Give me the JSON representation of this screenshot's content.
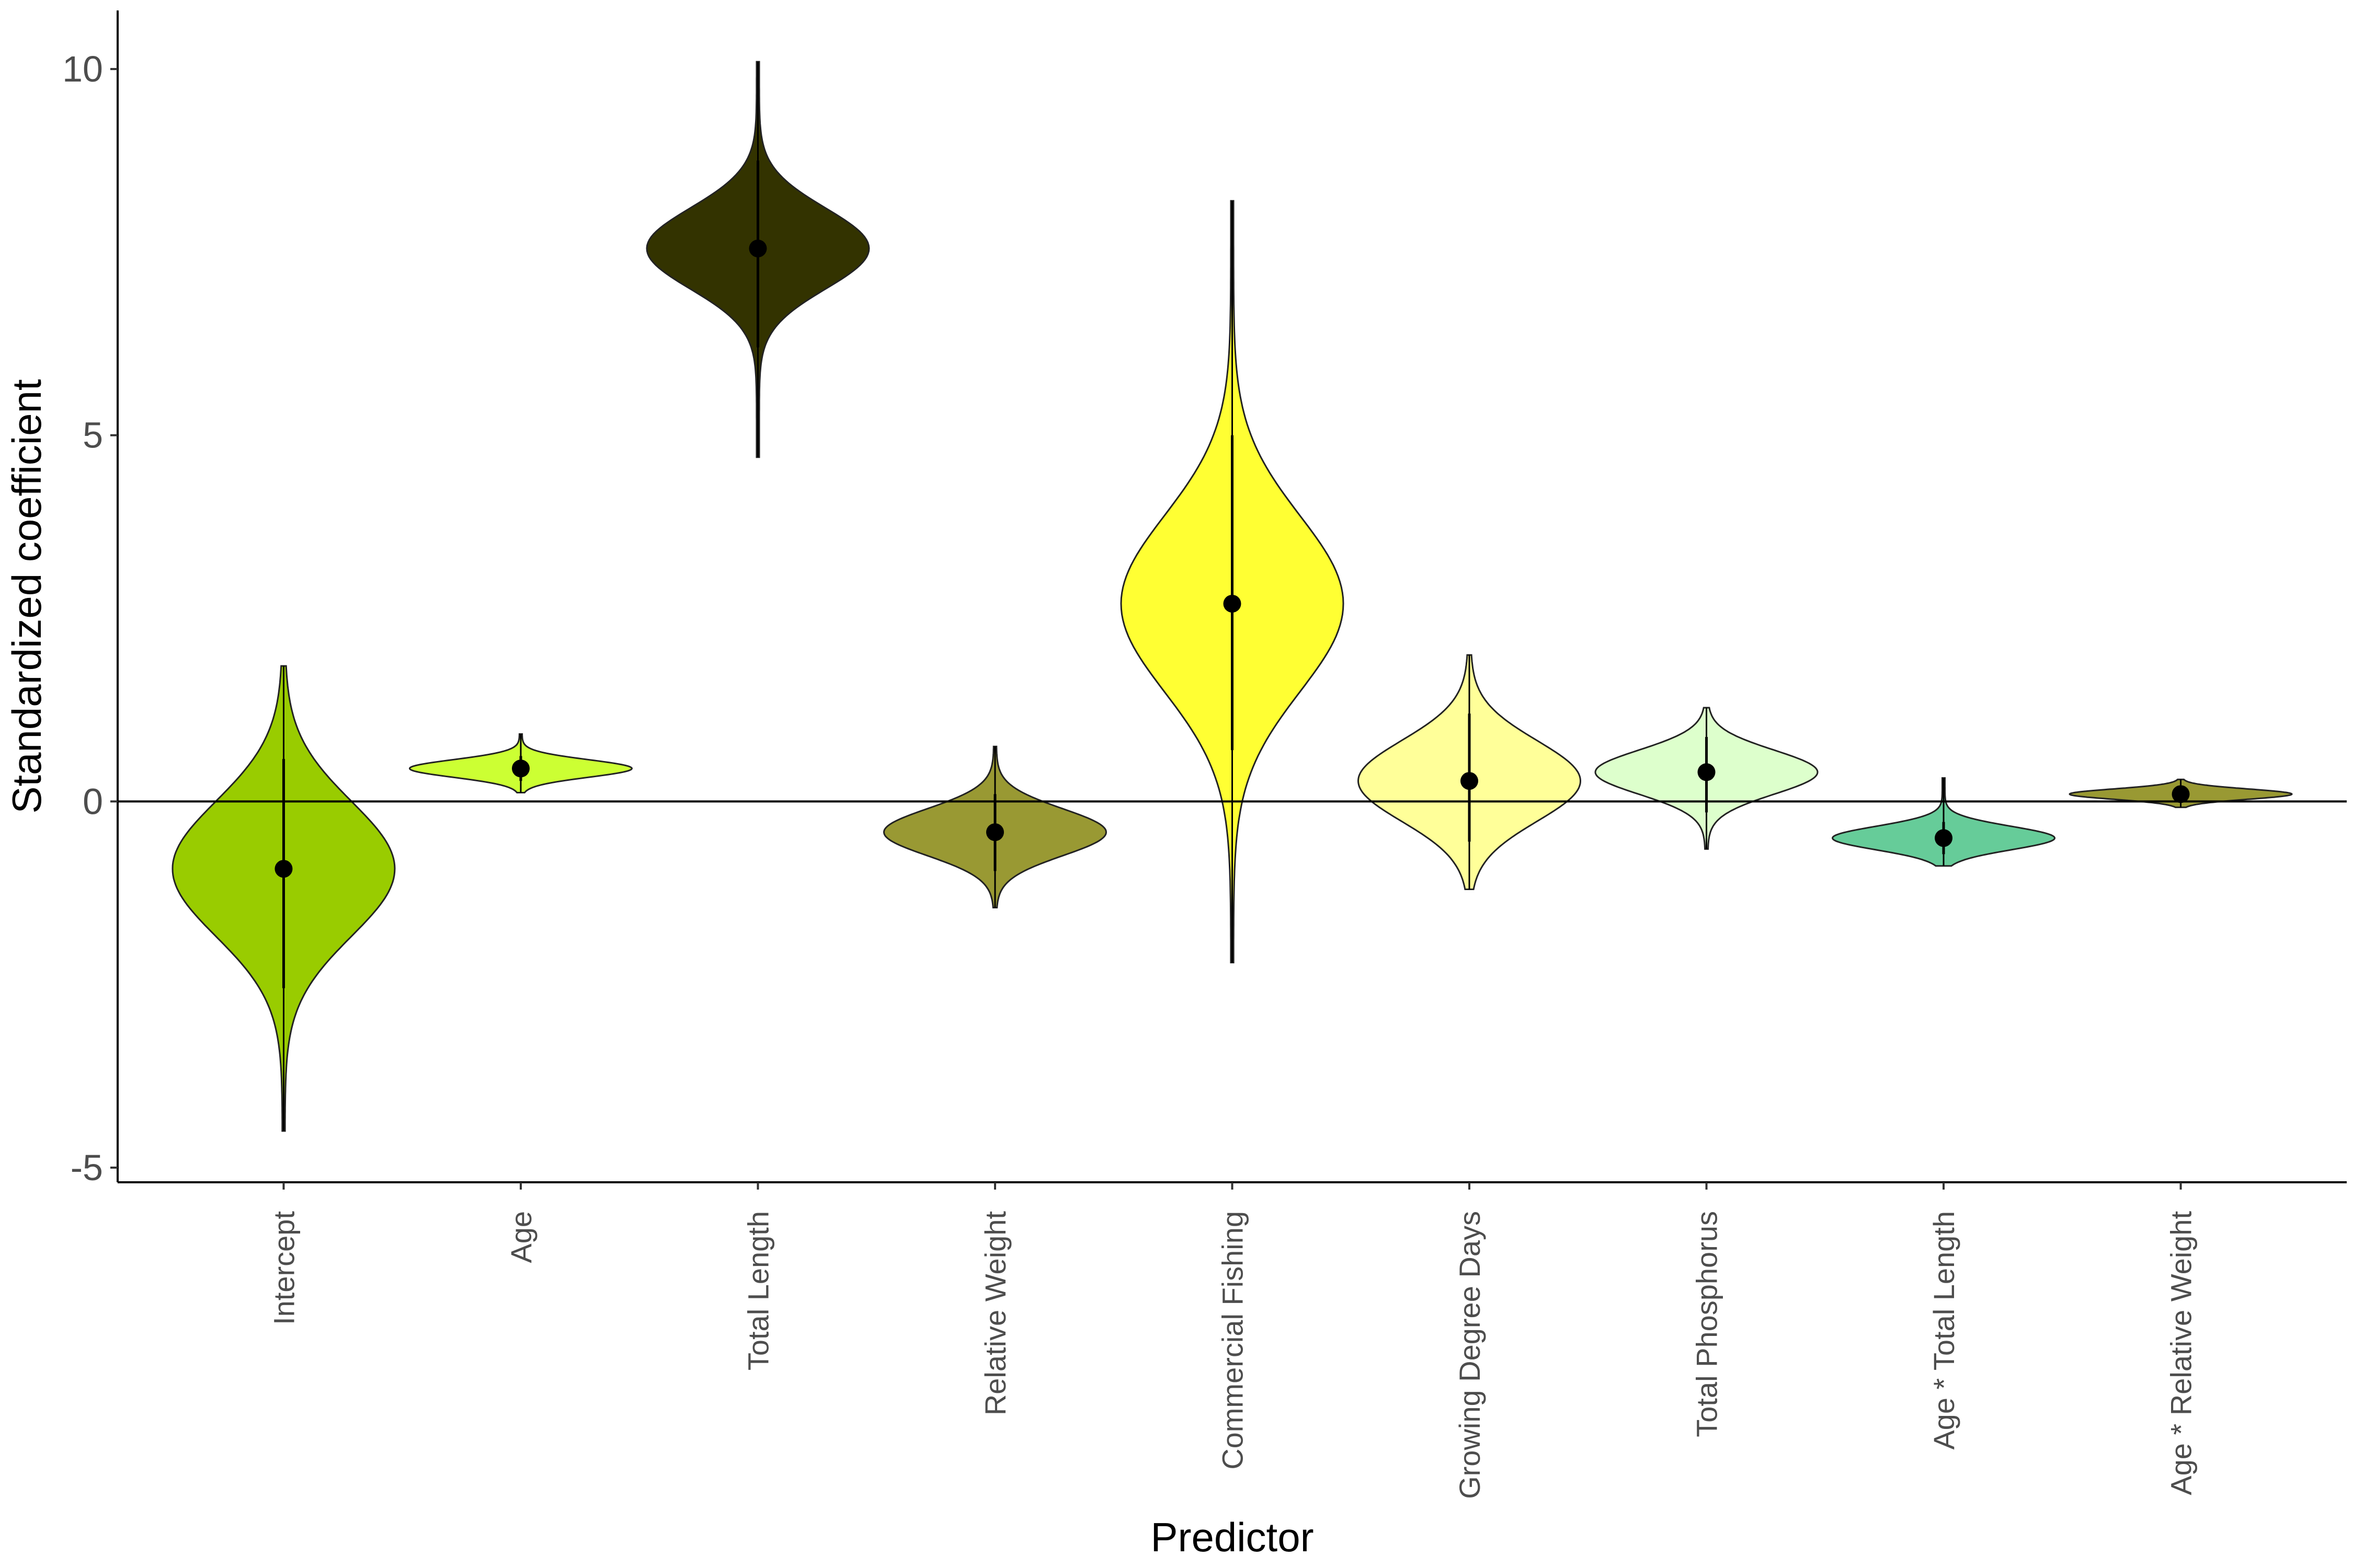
{
  "chart_data": {
    "type": "violin",
    "title": "",
    "xlabel": "Predictor",
    "ylabel": "Standardized coefficient",
    "ylim": [
      -5.2,
      10.8
    ],
    "yticks": [
      -5,
      0,
      5,
      10
    ],
    "y_tick_labels": [
      "-5",
      "0",
      "5",
      "10"
    ],
    "reference_line": 0,
    "grid": false,
    "legend": "none",
    "categories": [
      "Intercept",
      "Age",
      "Total Length",
      "Relative Weight",
      "Commercial Fishing",
      "Growing Degree Days",
      "Total Phosphorus",
      "Age * Total Length",
      "Age * Relative Weight"
    ],
    "series": [
      {
        "category": "Intercept",
        "mean": -0.92,
        "interval": [
          -2.55,
          0.58
        ],
        "range": [
          -4.5,
          1.85
        ],
        "spread": 0.92,
        "color": "#99cc00"
      },
      {
        "category": "Age",
        "mean": 0.45,
        "interval": [
          0.28,
          0.62
        ],
        "range": [
          0.12,
          0.92
        ],
        "spread": 0.12,
        "color": "#ccff33"
      },
      {
        "category": "Total Length",
        "mean": 7.55,
        "interval": [
          6.2,
          8.75
        ],
        "range": [
          4.7,
          10.1
        ],
        "spread": 0.55,
        "color": "#333300"
      },
      {
        "category": "Relative Weight",
        "mean": -0.42,
        "interval": [
          -0.95,
          0.1
        ],
        "range": [
          -1.45,
          0.75
        ],
        "spread": 0.32,
        "color": "#999933"
      },
      {
        "category": "Commercial Fishing",
        "mean": 2.7,
        "interval": [
          0.7,
          5.0
        ],
        "range": [
          -2.2,
          8.2
        ],
        "spread": 1.2,
        "color": "#ffff33"
      },
      {
        "category": "Growing Degree Days",
        "mean": 0.28,
        "interval": [
          -0.55,
          1.2
        ],
        "range": [
          -1.2,
          2.0
        ],
        "spread": 0.55,
        "color": "#ffff99"
      },
      {
        "category": "Total Phosphorus",
        "mean": 0.4,
        "interval": [
          -0.15,
          0.88
        ],
        "range": [
          -0.65,
          1.28
        ],
        "spread": 0.3,
        "color": "#ddffcc"
      },
      {
        "category": "Age * Total Length",
        "mean": -0.5,
        "interval": [
          -0.72,
          -0.28
        ],
        "range": [
          -0.88,
          0.32
        ],
        "spread": 0.16,
        "color": "#66cc99"
      },
      {
        "category": "Age * Relative Weight",
        "mean": 0.1,
        "interval": [
          0.02,
          0.18
        ],
        "range": [
          -0.08,
          0.3
        ],
        "spread": 0.07,
        "color": "#999933"
      }
    ]
  }
}
